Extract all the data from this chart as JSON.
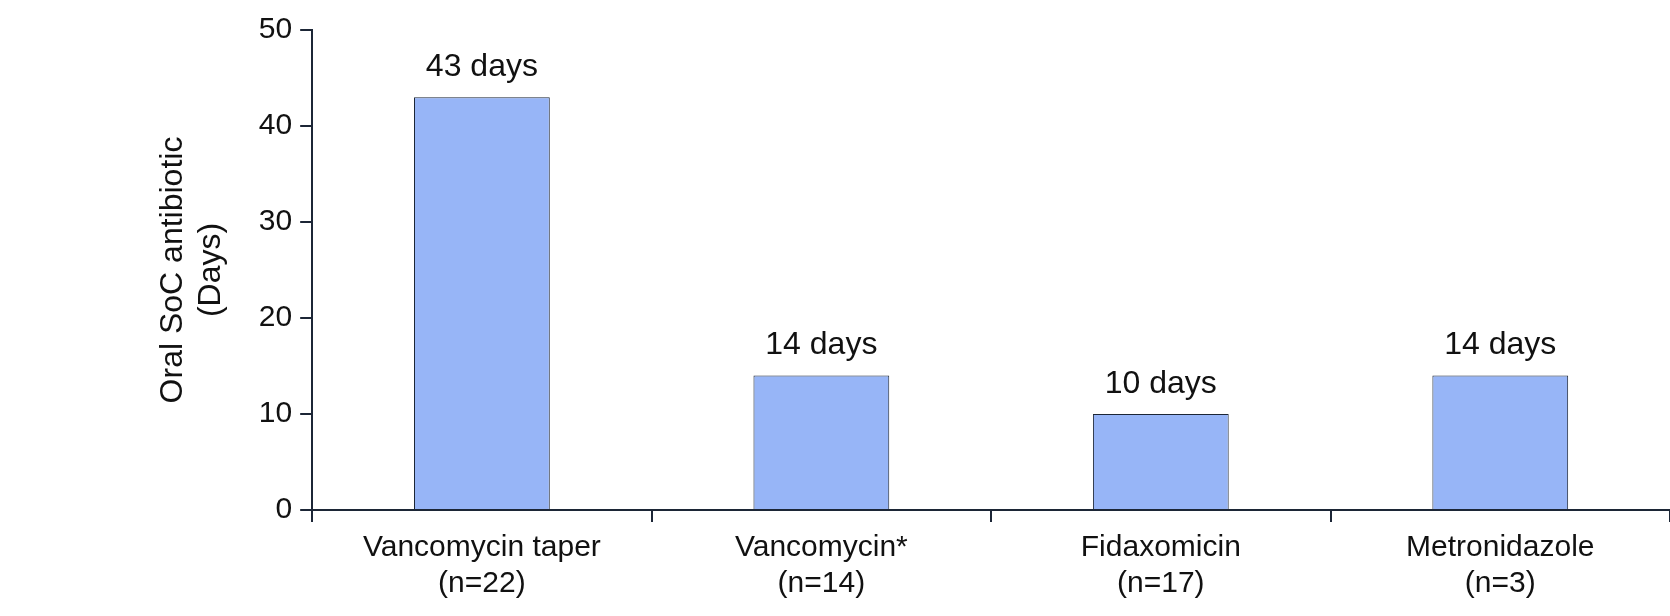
{
  "chart_data": {
    "type": "bar",
    "ylabel": "Oral SoC antibiotic\n(Days)",
    "categories": [
      "Vancomycin taper\n(n=22)",
      "Vancomycin*\n(n=14)",
      "Fidaxomicin\n(n=17)",
      "Metronidazole\n(n=3)"
    ],
    "values": [
      43,
      14,
      10,
      14
    ],
    "value_labels": [
      "43 days",
      "14 days",
      "10 days",
      "14 days"
    ],
    "color": "#97b5f7",
    "ylim": [
      0,
      50
    ],
    "yticks": [
      0,
      10,
      20,
      30,
      40,
      50
    ],
    "grid": false,
    "legend": false
  }
}
